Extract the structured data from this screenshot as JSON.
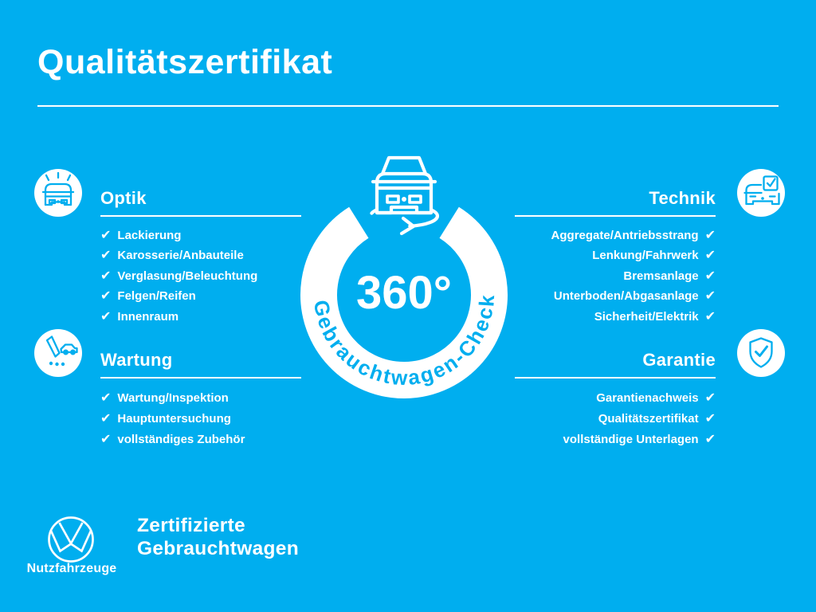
{
  "page": {
    "title": "Qualitätszertifikat",
    "background_color": "#00AEEF",
    "text_color": "#FFFFFF"
  },
  "checkmark": "✔",
  "badge": {
    "value": "360°",
    "ring_label": "Gebrauchtwagen-Check",
    "icon": "van-360-rotation-icon"
  },
  "icons": {
    "optik": "shiny-van-icon",
    "wartung": "service-pen-van-icon",
    "technik": "van-checkbox-icon",
    "garantie": "shield-check-icon",
    "footer_logo": "vw-logo"
  },
  "sections": {
    "optik": {
      "title": "Optik",
      "items": [
        "Lackierung",
        "Karosserie/Anbauteile",
        "Verglasung/Beleuchtung",
        "Felgen/Reifen",
        "Innenraum"
      ]
    },
    "wartung": {
      "title": "Wartung",
      "items": [
        "Wartung/Inspektion",
        "Hauptuntersuchung",
        "vollständiges Zubehör"
      ]
    },
    "technik": {
      "title": "Technik",
      "items": [
        "Aggregate/Antriebsstrang",
        "Lenkung/Fahrwerk",
        "Bremsanlage",
        "Unterboden/Abgasanlage",
        "Sicherheit/Elektrik"
      ]
    },
    "garantie": {
      "title": "Garantie",
      "items": [
        "Garantienachweis",
        "Qualitätszertifikat",
        "vollständige Unterlagen"
      ]
    }
  },
  "footer": {
    "brand": "Nutzfahrzeuge",
    "tagline_line1": "Zertifizierte",
    "tagline_line2": "Gebrauchtwagen"
  }
}
